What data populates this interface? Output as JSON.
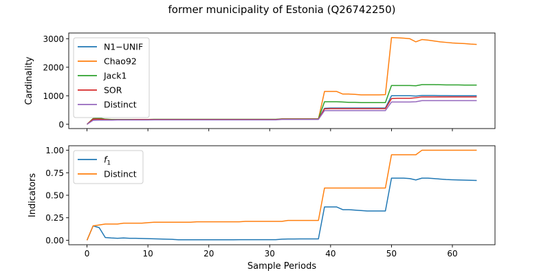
{
  "figure_title": "former municipality of Estonia (Q26742250)",
  "chart_data": [
    {
      "type": "line",
      "xlabel": "",
      "ylabel": "Cardinality",
      "xlim": [
        -3,
        67
      ],
      "ylim": [
        -150,
        3200
      ],
      "xticks": [
        0,
        10,
        20,
        30,
        40,
        50,
        60
      ],
      "xtick_labels_visible": false,
      "yticks": [
        0,
        1000,
        2000,
        3000
      ],
      "ytick_labels": [
        "0",
        "1000",
        "2000",
        "3000"
      ],
      "legend_position": "upper-left",
      "grid": false,
      "series": [
        {
          "name": "N1−UNIF",
          "color": "#1f77b4",
          "x": [
            0,
            1,
            2,
            3,
            4,
            5,
            6,
            7,
            8,
            9,
            10,
            11,
            12,
            13,
            14,
            15,
            16,
            17,
            18,
            19,
            20,
            21,
            22,
            23,
            24,
            25,
            26,
            27,
            28,
            29,
            30,
            31,
            32,
            33,
            34,
            35,
            36,
            37,
            38,
            39,
            40,
            41,
            42,
            43,
            44,
            45,
            46,
            47,
            48,
            49,
            50,
            51,
            52,
            53,
            54,
            55,
            56,
            57,
            58,
            59,
            60,
            61,
            62,
            63,
            64
          ],
          "values": [
            0,
            170,
            180,
            165,
            155,
            160,
            160,
            160,
            165,
            165,
            165,
            165,
            165,
            165,
            165,
            165,
            165,
            165,
            165,
            165,
            165,
            165,
            165,
            165,
            165,
            165,
            165,
            165,
            165,
            165,
            165,
            165,
            180,
            180,
            180,
            180,
            180,
            180,
            180,
            560,
            570,
            570,
            570,
            570,
            570,
            570,
            570,
            570,
            570,
            570,
            1000,
            1000,
            1000,
            1000,
            990,
            1010,
            1010,
            1010,
            1005,
            1005,
            1000,
            1000,
            1000,
            1000,
            1000
          ]
        },
        {
          "name": "Chao92",
          "color": "#ff7f0e",
          "x": [
            0,
            1,
            2,
            3,
            4,
            5,
            6,
            7,
            8,
            9,
            10,
            11,
            12,
            13,
            14,
            15,
            16,
            17,
            18,
            19,
            20,
            21,
            22,
            23,
            24,
            25,
            26,
            27,
            28,
            29,
            30,
            31,
            32,
            33,
            34,
            35,
            36,
            37,
            38,
            39,
            40,
            41,
            42,
            43,
            44,
            45,
            46,
            47,
            48,
            49,
            50,
            51,
            52,
            53,
            54,
            55,
            56,
            57,
            58,
            59,
            60,
            61,
            62,
            63,
            64
          ],
          "values": [
            0,
            200,
            190,
            170,
            160,
            160,
            165,
            165,
            165,
            165,
            165,
            170,
            170,
            170,
            170,
            170,
            170,
            170,
            170,
            170,
            170,
            170,
            170,
            170,
            170,
            170,
            170,
            170,
            170,
            170,
            170,
            170,
            185,
            185,
            185,
            185,
            185,
            185,
            185,
            1150,
            1150,
            1150,
            1060,
            1060,
            1050,
            1030,
            1030,
            1030,
            1030,
            1040,
            3040,
            3030,
            3020,
            3000,
            2890,
            2970,
            2950,
            2920,
            2890,
            2870,
            2850,
            2840,
            2830,
            2810,
            2800
          ]
        },
        {
          "name": "Jack1",
          "color": "#2ca02c",
          "x": [
            0,
            1,
            2,
            3,
            4,
            5,
            6,
            7,
            8,
            9,
            10,
            11,
            12,
            13,
            14,
            15,
            16,
            17,
            18,
            19,
            20,
            21,
            22,
            23,
            24,
            25,
            26,
            27,
            28,
            29,
            30,
            31,
            32,
            33,
            34,
            35,
            36,
            37,
            38,
            39,
            40,
            41,
            42,
            43,
            44,
            45,
            46,
            47,
            48,
            49,
            50,
            51,
            52,
            53,
            54,
            55,
            56,
            57,
            58,
            59,
            60,
            61,
            62,
            63,
            64
          ],
          "values": [
            0,
            200,
            220,
            180,
            170,
            170,
            170,
            170,
            170,
            170,
            170,
            175,
            175,
            175,
            175,
            175,
            175,
            175,
            175,
            175,
            175,
            175,
            175,
            175,
            175,
            175,
            175,
            175,
            175,
            175,
            175,
            175,
            190,
            190,
            190,
            190,
            190,
            190,
            190,
            790,
            790,
            790,
            780,
            770,
            770,
            760,
            760,
            760,
            760,
            760,
            1360,
            1360,
            1360,
            1360,
            1350,
            1390,
            1390,
            1390,
            1385,
            1380,
            1380,
            1380,
            1375,
            1375,
            1375
          ]
        },
        {
          "name": "SOR",
          "color": "#d62728",
          "x": [
            0,
            1,
            2,
            3,
            4,
            5,
            6,
            7,
            8,
            9,
            10,
            11,
            12,
            13,
            14,
            15,
            16,
            17,
            18,
            19,
            20,
            21,
            22,
            23,
            24,
            25,
            26,
            27,
            28,
            29,
            30,
            31,
            32,
            33,
            34,
            35,
            36,
            37,
            38,
            39,
            40,
            41,
            42,
            43,
            44,
            45,
            46,
            47,
            48,
            49,
            50,
            51,
            52,
            53,
            54,
            55,
            56,
            57,
            58,
            59,
            60,
            61,
            62,
            63,
            64
          ],
          "values": [
            0,
            180,
            185,
            165,
            155,
            160,
            160,
            160,
            165,
            165,
            165,
            165,
            165,
            165,
            165,
            165,
            165,
            165,
            165,
            165,
            165,
            165,
            165,
            165,
            165,
            165,
            165,
            165,
            165,
            165,
            165,
            165,
            180,
            180,
            180,
            180,
            180,
            180,
            180,
            540,
            550,
            550,
            550,
            550,
            550,
            550,
            550,
            550,
            550,
            550,
            900,
            910,
            910,
            910,
            930,
            960,
            960,
            960,
            960,
            960,
            960,
            960,
            960,
            960,
            960
          ]
        },
        {
          "name": "Distinct",
          "color": "#9467bd",
          "x": [
            0,
            1,
            2,
            3,
            4,
            5,
            6,
            7,
            8,
            9,
            10,
            11,
            12,
            13,
            14,
            15,
            16,
            17,
            18,
            19,
            20,
            21,
            22,
            23,
            24,
            25,
            26,
            27,
            28,
            29,
            30,
            31,
            32,
            33,
            34,
            35,
            36,
            37,
            38,
            39,
            40,
            41,
            42,
            43,
            44,
            45,
            46,
            47,
            48,
            49,
            50,
            51,
            52,
            53,
            54,
            55,
            56,
            57,
            58,
            59,
            60,
            61,
            62,
            63,
            64
          ],
          "values": [
            0,
            140,
            145,
            145,
            145,
            150,
            150,
            150,
            150,
            150,
            150,
            155,
            155,
            155,
            155,
            155,
            155,
            155,
            155,
            155,
            155,
            155,
            155,
            155,
            155,
            155,
            155,
            155,
            155,
            155,
            155,
            155,
            170,
            170,
            170,
            170,
            170,
            170,
            170,
            480,
            480,
            480,
            480,
            480,
            480,
            480,
            480,
            480,
            480,
            480,
            780,
            780,
            780,
            780,
            790,
            830,
            830,
            830,
            830,
            830,
            830,
            830,
            830,
            830,
            830
          ]
        }
      ]
    },
    {
      "type": "line",
      "xlabel": "Sample Periods",
      "ylabel": "Indicators",
      "xlim": [
        -3,
        67
      ],
      "ylim": [
        -0.05,
        1.05
      ],
      "xticks": [
        0,
        10,
        20,
        30,
        40,
        50,
        60
      ],
      "xtick_labels": [
        "0",
        "10",
        "20",
        "30",
        "40",
        "50",
        "60"
      ],
      "yticks": [
        0,
        0.25,
        0.5,
        0.75,
        1.0
      ],
      "ytick_labels": [
        "0.00",
        "0.25",
        "0.50",
        "0.75",
        "1.00"
      ],
      "legend_position": "upper-left",
      "grid": false,
      "series": [
        {
          "name": "f",
          "name_subscript": "1",
          "color": "#1f77b4",
          "x": [
            0,
            1,
            2,
            3,
            4,
            5,
            6,
            7,
            8,
            9,
            10,
            11,
            12,
            13,
            14,
            15,
            16,
            17,
            18,
            19,
            20,
            21,
            22,
            23,
            24,
            25,
            26,
            27,
            28,
            29,
            30,
            31,
            32,
            33,
            34,
            35,
            36,
            37,
            38,
            39,
            40,
            41,
            42,
            43,
            44,
            45,
            46,
            47,
            48,
            49,
            50,
            51,
            52,
            53,
            54,
            55,
            56,
            57,
            58,
            59,
            60,
            61,
            62,
            63,
            64
          ],
          "values": [
            0,
            0.16,
            0.14,
            0.03,
            0.025,
            0.022,
            0.025,
            0.022,
            0.022,
            0.02,
            0.018,
            0.016,
            0.014,
            0.012,
            0.01,
            0.005,
            0.005,
            0.005,
            0.005,
            0.005,
            0.005,
            0.005,
            0.005,
            0.005,
            0.005,
            0.006,
            0.006,
            0.006,
            0.006,
            0.006,
            0.006,
            0.006,
            0.012,
            0.014,
            0.014,
            0.015,
            0.015,
            0.015,
            0.015,
            0.37,
            0.37,
            0.37,
            0.34,
            0.34,
            0.335,
            0.33,
            0.325,
            0.325,
            0.325,
            0.325,
            0.69,
            0.69,
            0.69,
            0.685,
            0.67,
            0.69,
            0.69,
            0.685,
            0.68,
            0.675,
            0.672,
            0.67,
            0.668,
            0.666,
            0.664
          ]
        },
        {
          "name": "Distinct",
          "color": "#ff7f0e",
          "x": [
            0,
            1,
            2,
            3,
            4,
            5,
            6,
            7,
            8,
            9,
            10,
            11,
            12,
            13,
            14,
            15,
            16,
            17,
            18,
            19,
            20,
            21,
            22,
            23,
            24,
            25,
            26,
            27,
            28,
            29,
            30,
            31,
            32,
            33,
            34,
            35,
            36,
            37,
            38,
            39,
            40,
            41,
            42,
            43,
            44,
            45,
            46,
            47,
            48,
            49,
            50,
            51,
            52,
            53,
            54,
            55,
            56,
            57,
            58,
            59,
            60,
            61,
            62,
            63,
            64
          ],
          "values": [
            0,
            0.16,
            0.17,
            0.18,
            0.18,
            0.18,
            0.19,
            0.19,
            0.19,
            0.19,
            0.195,
            0.2,
            0.2,
            0.2,
            0.2,
            0.2,
            0.2,
            0.2,
            0.205,
            0.205,
            0.205,
            0.205,
            0.205,
            0.205,
            0.205,
            0.205,
            0.21,
            0.21,
            0.21,
            0.21,
            0.21,
            0.21,
            0.21,
            0.22,
            0.22,
            0.22,
            0.22,
            0.22,
            0.22,
            0.58,
            0.58,
            0.58,
            0.58,
            0.58,
            0.58,
            0.58,
            0.58,
            0.58,
            0.58,
            0.58,
            0.95,
            0.95,
            0.95,
            0.95,
            0.95,
            1.0,
            1.0,
            1.0,
            1.0,
            1.0,
            1.0,
            1.0,
            1.0,
            1.0,
            1.0
          ]
        }
      ]
    }
  ]
}
